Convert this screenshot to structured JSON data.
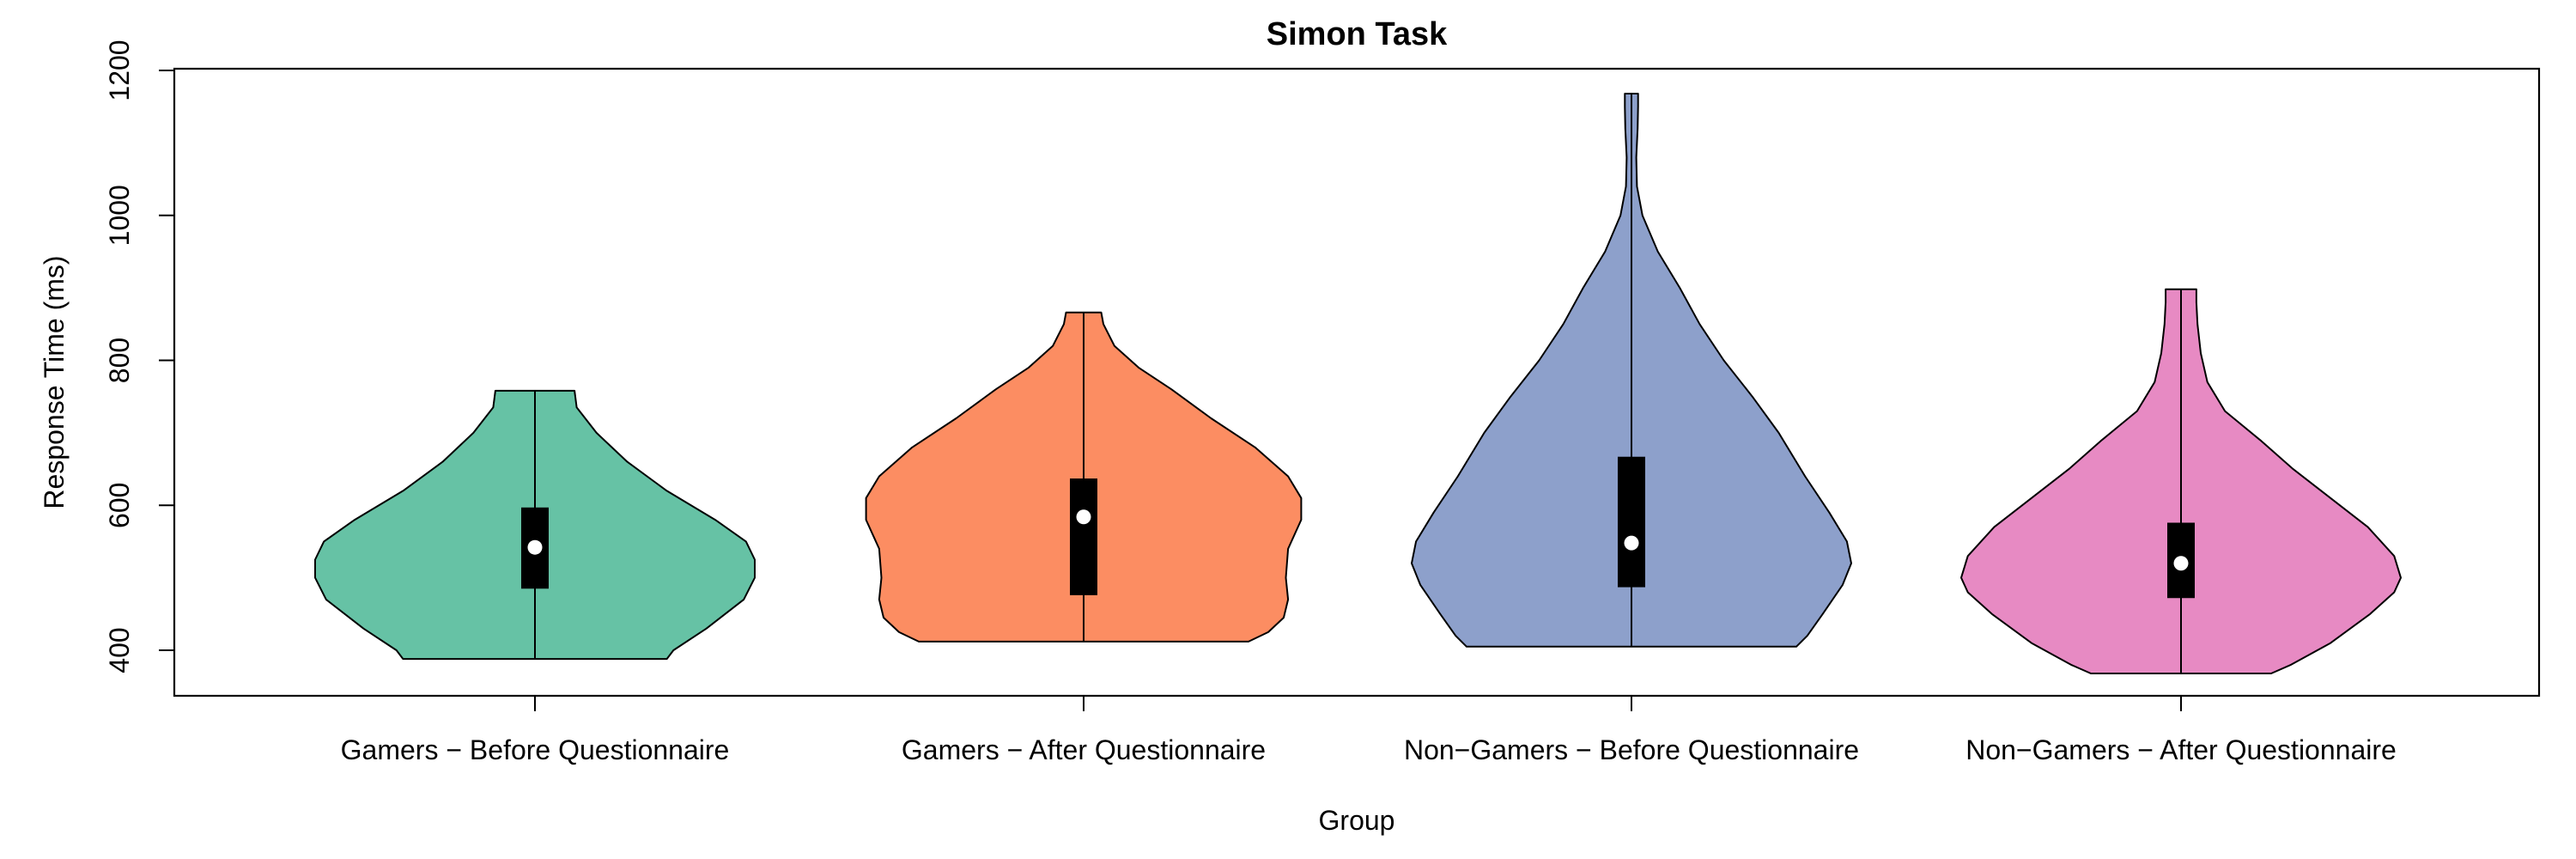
{
  "chart_data": {
    "type": "violin",
    "title": "Simon Task",
    "xlabel": "Group",
    "ylabel": "Response Time (ms)",
    "ylim": [
      340,
      1210
    ],
    "yticks": [
      400,
      600,
      800,
      1000,
      1200
    ],
    "grid": false,
    "legend": "none",
    "categories": [
      "Gamers − Before Questionnaire",
      "Gamers − After Questionnaire",
      "Non−Gamers − Before Questionnaire",
      "Non−Gamers − After Questionnaire"
    ],
    "series": [
      {
        "color": "#66c2a5",
        "min": 388,
        "q1": 485,
        "median": 542,
        "q3": 597,
        "max": 758,
        "density": [
          [
            388,
            0.6
          ],
          [
            400,
            0.63
          ],
          [
            430,
            0.78
          ],
          [
            470,
            0.95
          ],
          [
            500,
            1.0
          ],
          [
            525,
            1.0
          ],
          [
            550,
            0.96
          ],
          [
            580,
            0.82
          ],
          [
            620,
            0.6
          ],
          [
            660,
            0.42
          ],
          [
            700,
            0.28
          ],
          [
            735,
            0.19
          ],
          [
            758,
            0.18
          ]
        ]
      },
      {
        "color": "#fc8d62",
        "min": 412,
        "q1": 476,
        "median": 584,
        "q3": 637,
        "max": 866,
        "density": [
          [
            412,
            0.75
          ],
          [
            425,
            0.84
          ],
          [
            445,
            0.91
          ],
          [
            470,
            0.93
          ],
          [
            500,
            0.92
          ],
          [
            540,
            0.93
          ],
          [
            580,
            0.99
          ],
          [
            610,
            0.99
          ],
          [
            640,
            0.93
          ],
          [
            680,
            0.78
          ],
          [
            720,
            0.58
          ],
          [
            760,
            0.4
          ],
          [
            790,
            0.25
          ],
          [
            820,
            0.14
          ],
          [
            850,
            0.09
          ],
          [
            866,
            0.08
          ]
        ]
      },
      {
        "color": "#8da0cb",
        "min": 405,
        "q1": 487,
        "median": 548,
        "q3": 667,
        "max": 1168,
        "density": [
          [
            405,
            0.75
          ],
          [
            420,
            0.8
          ],
          [
            450,
            0.87
          ],
          [
            490,
            0.96
          ],
          [
            520,
            1.0
          ],
          [
            550,
            0.98
          ],
          [
            590,
            0.9
          ],
          [
            640,
            0.79
          ],
          [
            700,
            0.67
          ],
          [
            750,
            0.55
          ],
          [
            800,
            0.42
          ],
          [
            850,
            0.31
          ],
          [
            900,
            0.22
          ],
          [
            950,
            0.12
          ],
          [
            1000,
            0.05
          ],
          [
            1040,
            0.025
          ],
          [
            1080,
            0.022
          ],
          [
            1120,
            0.028
          ],
          [
            1150,
            0.03
          ],
          [
            1168,
            0.03
          ]
        ]
      },
      {
        "color": "#e78ac3",
        "min": 368,
        "q1": 472,
        "median": 520,
        "q3": 576,
        "max": 898,
        "density": [
          [
            368,
            0.41
          ],
          [
            380,
            0.5
          ],
          [
            410,
            0.68
          ],
          [
            450,
            0.86
          ],
          [
            480,
            0.97
          ],
          [
            500,
            1.0
          ],
          [
            530,
            0.97
          ],
          [
            570,
            0.85
          ],
          [
            610,
            0.68
          ],
          [
            650,
            0.51
          ],
          [
            690,
            0.36
          ],
          [
            730,
            0.2
          ],
          [
            770,
            0.12
          ],
          [
            810,
            0.09
          ],
          [
            850,
            0.075
          ],
          [
            880,
            0.07
          ],
          [
            898,
            0.07
          ]
        ]
      }
    ]
  }
}
